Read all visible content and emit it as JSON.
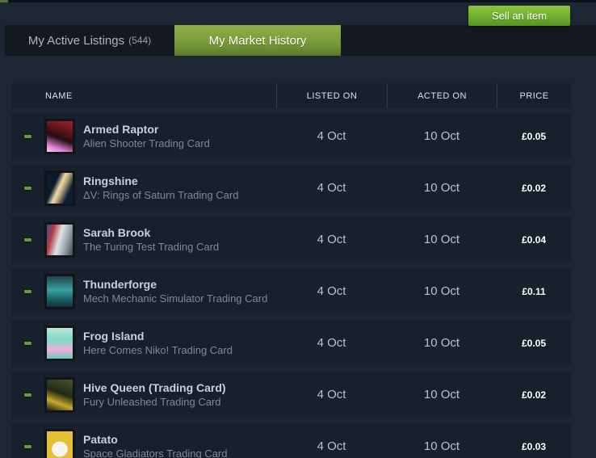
{
  "colors": {
    "page_background": "#1d2733",
    "tab_strip_background": "#14191f",
    "active_tab_green_top": "#90ae47",
    "active_tab_green_bottom": "#5a7a2b",
    "sell_button_green_top": "#8bc53e",
    "sell_button_green_bottom": "#579422",
    "table_block_background": "#17202b",
    "remove_dash_green": "#679b36",
    "price_text": "#ffffff",
    "date_text": "#b9c3cd",
    "item_name_text": "#c7d1da",
    "item_game_text": "#7f8a95"
  },
  "icons": {
    "remove_listing": "minus-icon"
  },
  "tab_bar": {
    "active_listings": {
      "label": "My Active Listings",
      "count": "(544)"
    },
    "market_history": {
      "label": "My Market History"
    },
    "sell_button_label": "Sell an item"
  },
  "table": {
    "header": {
      "name": "NAME",
      "listed_on": "LISTED ON",
      "acted_on": "ACTED ON",
      "price": "PRICE"
    },
    "rows": [
      {
        "name": "Armed Raptor",
        "game": "Alien Shooter Trading Card",
        "listed_on": "4 Oct",
        "acted_on": "10 Oct",
        "price": "£0.05",
        "thumb_bg": "linear-gradient(200deg, #9c2430 0%, #55141c 35%, #220d12 55%, #e07fd0 82%, #f4d5ee 100%)"
      },
      {
        "name": "Ringshine",
        "game": "ΔV: Rings of Saturn Trading Card",
        "listed_on": "4 Oct",
        "acted_on": "10 Oct",
        "price": "£0.02",
        "thumb_bg": "linear-gradient(115deg, #0c1a2e 32%, #ead9a6 48%, #c9b588 56%, #0d1d33 78%)"
      },
      {
        "name": "Sarah Brook",
        "game": "The Turing Test Trading Card",
        "listed_on": "4 Oct",
        "acted_on": "10 Oct",
        "price": "£0.04",
        "thumb_bg": "linear-gradient(105deg, #3a4f8c 0%, #b03a3f 22%, #dfe3e6 48%, #9aa4ad 72%, #3c4755 100%)"
      },
      {
        "name": "Thunderforge",
        "game": "Mech Mechanic Simulator Trading Card",
        "listed_on": "4 Oct",
        "acted_on": "10 Oct",
        "price": "£0.11",
        "thumb_bg": "linear-gradient(180deg, #26404a 0%, #3aa0a0 45%, #1d5f66 75%, #12303c 100%)"
      },
      {
        "name": "Frog Island",
        "game": "Here Comes Niko! Trading Card",
        "listed_on": "4 Oct",
        "acted_on": "10 Oct",
        "price": "£0.05",
        "thumb_bg": "linear-gradient(180deg, #bfe6d8 0%, #7fd8c8 40%, #f3aee0 72%, #66c9b8 100%)"
      },
      {
        "name": "Hive Queen (Trading Card)",
        "game": "Fury Unleashed Trading Card",
        "listed_on": "4 Oct",
        "acted_on": "10 Oct",
        "price": "£0.02",
        "thumb_bg": "linear-gradient(200deg, #4a5426 0%, #222a14 45%, #c8a82e 72%, #17200f 100%)"
      },
      {
        "name": "Patato",
        "game": "Space Gladiators Trading Card",
        "listed_on": "4 Oct",
        "acted_on": "10 Oct",
        "price": "£0.03",
        "thumb_bg": "radial-gradient(ellipse 52% 42% at 50% 58%, #f7f5ef 0%, #f7f5ef 58%, #e4bf37 60%, #e4bf37 100%)"
      }
    ]
  }
}
